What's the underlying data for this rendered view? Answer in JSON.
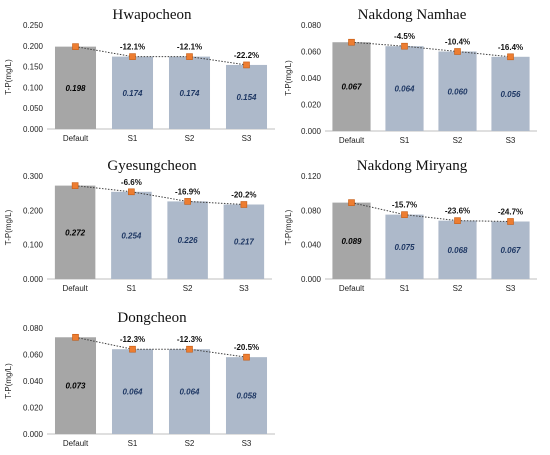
{
  "colors": {
    "default_bar": "#a6a6a6",
    "scenario_bar": "#adb9ca",
    "default_label": "#000000",
    "scenario_label": "#1f3864",
    "marker": "#ed7d31",
    "line": "#404040",
    "axis": "#bfbfbf"
  },
  "chart_data": [
    {
      "type": "bar",
      "title": "Hwapocheon",
      "ylabel": "T-P(mg/L)",
      "categories": [
        "Default",
        "S1",
        "S2",
        "S3"
      ],
      "values": [
        0.198,
        0.174,
        0.174,
        0.154
      ],
      "value_labels": [
        "0.198",
        "0.174",
        "0.174",
        "0.154"
      ],
      "change_labels": [
        "",
        "-12.1%",
        "-12.1%",
        "-22.2%"
      ],
      "yticks": [
        "0.000",
        "0.050",
        "0.100",
        "0.150",
        "0.200",
        "0.250"
      ],
      "ylim": [
        0,
        0.25
      ],
      "overlay": "line with square markers"
    },
    {
      "type": "bar",
      "title": "Nakdong Namhae",
      "ylabel": "T-P(mg/L)",
      "categories": [
        "Default",
        "S1",
        "S2",
        "S3"
      ],
      "values": [
        0.067,
        0.064,
        0.06,
        0.056
      ],
      "value_labels": [
        "0.067",
        "0.064",
        "0.060",
        "0.056"
      ],
      "change_labels": [
        "",
        "-4.5%",
        "-10.4%",
        "-16.4%"
      ],
      "yticks": [
        "0.000",
        "0.020",
        "0.040",
        "0.060",
        "0.080"
      ],
      "ylim": [
        0,
        0.08
      ],
      "overlay": "line with square markers"
    },
    {
      "type": "bar",
      "title": "Gyesungcheon",
      "ylabel": "T-P(mg/L)",
      "categories": [
        "Default",
        "S1",
        "S2",
        "S3"
      ],
      "values": [
        0.272,
        0.254,
        0.226,
        0.217
      ],
      "value_labels": [
        "0.272",
        "0.254",
        "0.226",
        "0.217"
      ],
      "change_labels": [
        "",
        "-6.6%",
        "-16.9%",
        "-20.2%"
      ],
      "yticks": [
        "0.000",
        "0.100",
        "0.200",
        "0.300"
      ],
      "ylim": [
        0,
        0.3
      ],
      "overlay": "line with square markers"
    },
    {
      "type": "bar",
      "title": "Nakdong Miryang",
      "ylabel": "T-P(mg/L)",
      "categories": [
        "Default",
        "S1",
        "S2",
        "S3"
      ],
      "values": [
        0.089,
        0.075,
        0.068,
        0.067
      ],
      "value_labels": [
        "0.089",
        "0.075",
        "0.068",
        "0.067"
      ],
      "change_labels": [
        "",
        "-15.7%",
        "-23.6%",
        "-24.7%"
      ],
      "yticks": [
        "0.000",
        "0.040",
        "0.080",
        "0.120"
      ],
      "ylim": [
        0,
        0.12
      ],
      "overlay": "line with square markers"
    },
    {
      "type": "bar",
      "title": "Dongcheon",
      "ylabel": "T-P(mg/L)",
      "categories": [
        "Default",
        "S1",
        "S2",
        "S3"
      ],
      "values": [
        0.073,
        0.064,
        0.064,
        0.058
      ],
      "value_labels": [
        "0.073",
        "0.064",
        "0.064",
        "0.058"
      ],
      "change_labels": [
        "",
        "-12.3%",
        "-12.3%",
        "-20.5%"
      ],
      "yticks": [
        "0.000",
        "0.020",
        "0.040",
        "0.060",
        "0.080"
      ],
      "ylim": [
        0,
        0.08
      ],
      "overlay": "line with square markers"
    }
  ]
}
